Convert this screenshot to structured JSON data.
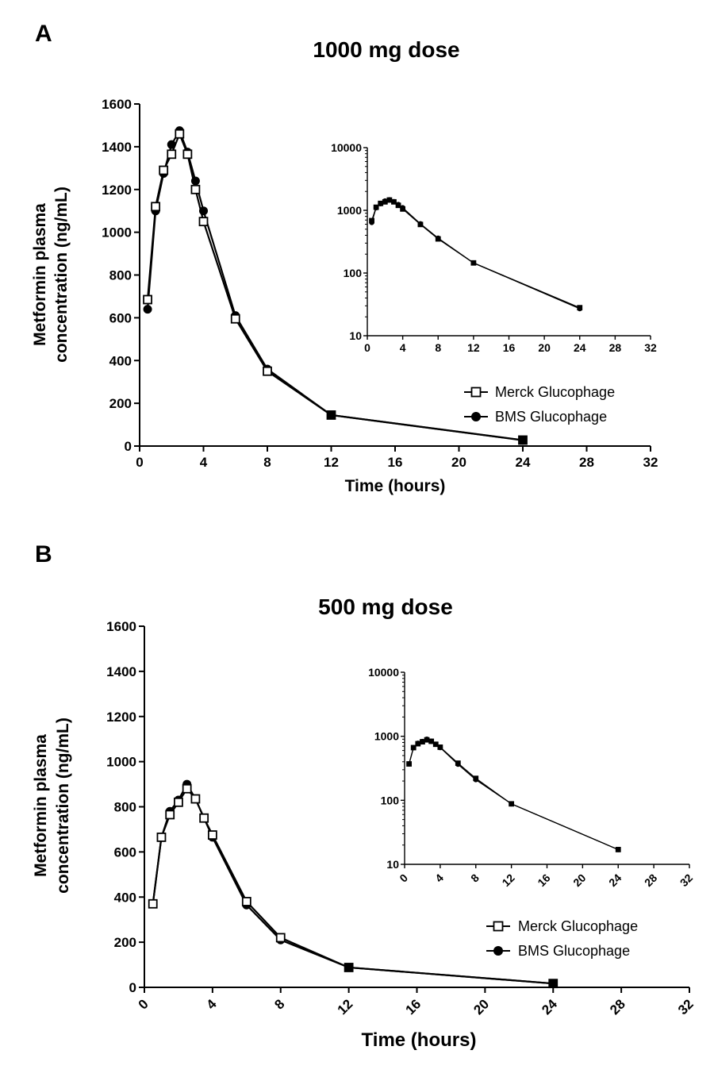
{
  "colors": {
    "line": "#000000",
    "background": "#ffffff"
  },
  "legend": {
    "merck_label": "Merck Glucophage",
    "bms_label": "BMS Glucophage"
  },
  "chart_data": [
    {
      "panel": "A",
      "type": "line",
      "title": "1000 mg dose",
      "xlabel": "Time (hours)",
      "ylabel_line1": "Metformin plasma",
      "ylabel_line2": "concentration (ng/mL)",
      "xlim": [
        0,
        32
      ],
      "ylim": [
        0,
        1600
      ],
      "xticks": [
        "0",
        "4",
        "8",
        "12",
        "16",
        "20",
        "24",
        "28",
        "32"
      ],
      "yticks": [
        "0",
        "200",
        "400",
        "600",
        "800",
        "1000",
        "1200",
        "1400",
        "1600"
      ],
      "x": [
        0.5,
        1,
        1.5,
        2,
        2.5,
        3,
        3.5,
        4,
        6,
        8,
        12,
        24
      ],
      "series": [
        {
          "name": "Merck Glucophage",
          "marker": "open-square",
          "values": [
            685,
            1120,
            1290,
            1365,
            1460,
            1365,
            1200,
            1050,
            595,
            350,
            145,
            28
          ]
        },
        {
          "name": "BMS Glucophage",
          "marker": "filled-circle",
          "values": [
            640,
            1100,
            1275,
            1410,
            1475,
            1375,
            1240,
            1100,
            610,
            360,
            145,
            27
          ]
        }
      ],
      "inset": {
        "yscale": "log",
        "ylim": [
          10,
          10000
        ],
        "yticks": [
          "10",
          "100",
          "1000",
          "10000"
        ],
        "xlim": [
          0,
          32
        ],
        "xticks": [
          "0",
          "4",
          "8",
          "12",
          "16",
          "20",
          "24",
          "28",
          "32"
        ]
      }
    },
    {
      "panel": "B",
      "type": "line",
      "title": "500 mg dose",
      "xlabel": "Time (hours)",
      "ylabel_line1": "Metformin plasma",
      "ylabel_line2": "concentration (ng/mL)",
      "xlim": [
        0,
        32
      ],
      "ylim": [
        0,
        1600
      ],
      "xticks": [
        "0",
        "4",
        "8",
        "12",
        "16",
        "20",
        "24",
        "28",
        "32"
      ],
      "yticks": [
        "0",
        "200",
        "400",
        "600",
        "800",
        "1000",
        "1200",
        "1400",
        "1600"
      ],
      "x": [
        0.5,
        1,
        1.5,
        2,
        2.5,
        3,
        3.5,
        4,
        6,
        8,
        12,
        24
      ],
      "series": [
        {
          "name": "Merck Glucophage",
          "marker": "open-square",
          "values": [
            370,
            665,
            765,
            820,
            880,
            835,
            750,
            675,
            380,
            220,
            88,
            17
          ]
        },
        {
          "name": "BMS Glucophage",
          "marker": "filled-circle",
          "values": [
            370,
            665,
            780,
            830,
            900,
            835,
            750,
            665,
            365,
            210,
            88,
            17
          ]
        }
      ],
      "inset": {
        "yscale": "log",
        "ylim": [
          10,
          10000
        ],
        "yticks": [
          "10",
          "100",
          "1000",
          "10000"
        ],
        "xlim": [
          0,
          32
        ],
        "xticks": [
          "0",
          "4",
          "8",
          "12",
          "16",
          "20",
          "24",
          "28",
          "32"
        ]
      }
    }
  ]
}
